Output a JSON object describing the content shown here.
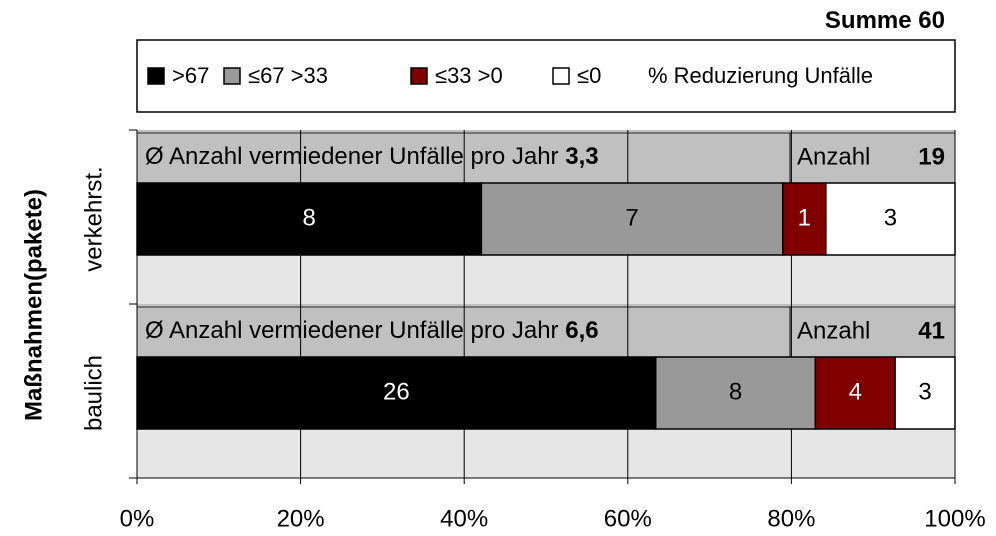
{
  "chart_data": {
    "type": "stacked_bar_100",
    "summary": {
      "label": "Summe",
      "value": "60"
    },
    "legend_title": "% Reduzierung Unfälle",
    "axis_label": "Maßnahmen(pakete)",
    "categories": [
      "verkehrst.",
      "baulich"
    ],
    "series": [
      {
        "name": ">67",
        "color": "#000000",
        "values": [
          8,
          26
        ]
      },
      {
        "name": "≤67 >33",
        "color": "#999999",
        "values": [
          7,
          8
        ]
      },
      {
        "name": "≤33 >0",
        "color": "#800000",
        "values": [
          1,
          4
        ]
      },
      {
        "name": "≤0",
        "color": "#ffffff",
        "values": [
          3,
          3
        ]
      }
    ],
    "annotations": [
      {
        "text": "Ø Anzahl vermiedener Unfälle pro Jahr",
        "value": "3,3",
        "count_label": "Anzahl",
        "count": "19"
      },
      {
        "text": "Ø Anzahl vermiedener Unfälle pro Jahr",
        "value": "6,6",
        "count_label": "Anzahl",
        "count": "41"
      }
    ],
    "xlim": [
      0,
      100
    ],
    "xticks": [
      {
        "value": 0,
        "label": "0%"
      },
      {
        "value": 20,
        "label": "20%"
      },
      {
        "value": 40,
        "label": "40%"
      },
      {
        "value": 60,
        "label": "60%"
      },
      {
        "value": 80,
        "label": "80%"
      },
      {
        "value": 100,
        "label": "100%"
      }
    ],
    "grid": true
  }
}
